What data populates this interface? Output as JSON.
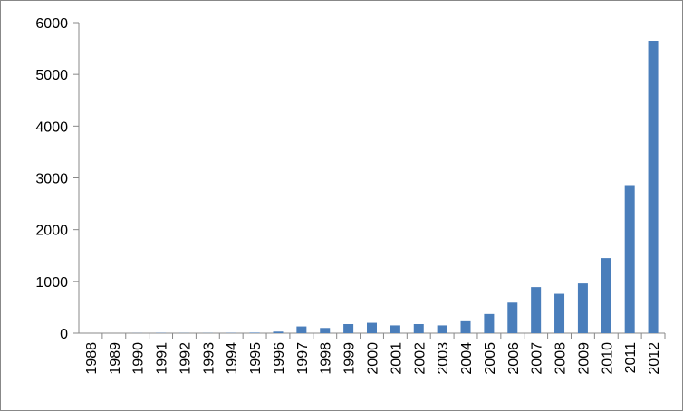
{
  "chart_data": {
    "type": "bar",
    "categories": [
      "1988",
      "1989",
      "1990",
      "1991",
      "1992",
      "1993",
      "1994",
      "1995",
      "1996",
      "1997",
      "1998",
      "1999",
      "2000",
      "2001",
      "2002",
      "2003",
      "2004",
      "2005",
      "2006",
      "2007",
      "2008",
      "2009",
      "2010",
      "2011",
      "2012"
    ],
    "values": [
      0,
      0,
      2,
      5,
      3,
      3,
      5,
      10,
      30,
      130,
      100,
      175,
      200,
      150,
      175,
      150,
      230,
      370,
      590,
      890,
      760,
      960,
      1450,
      2860,
      5650
    ],
    "color": "#4a7ebb",
    "ylim": [
      0,
      6000
    ],
    "yticks": [
      0,
      1000,
      2000,
      3000,
      4000,
      5000,
      6000
    ],
    "grid": false
  }
}
